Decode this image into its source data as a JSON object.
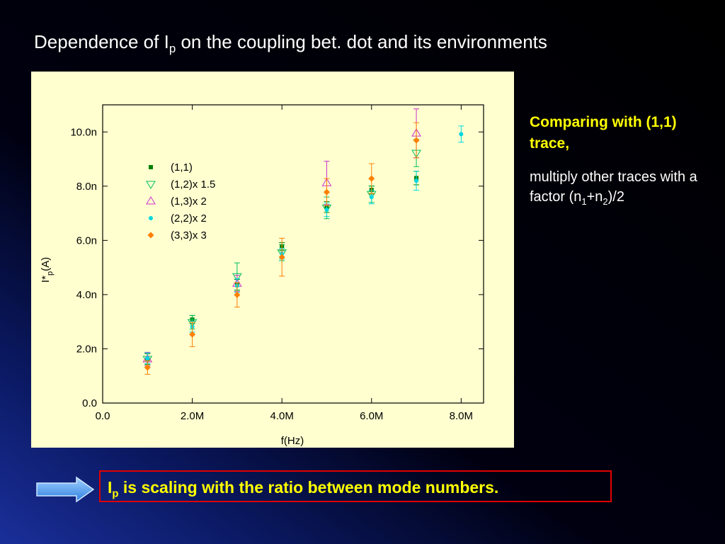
{
  "slide": {
    "title": [
      "Dependence of I",
      "p",
      " on the coupling bet. dot and its environments"
    ],
    "note_heading": "Comparing with (1,1) trace,",
    "note_body": [
      "multiply other traces with a factor (n",
      "1",
      "+n",
      "2",
      ")/2"
    ],
    "conclusion": [
      "I",
      "p",
      " is scaling with the ratio between mode numbers."
    ]
  },
  "chart_data": {
    "type": "scatter",
    "x_label": "f(Hz)",
    "y_label": [
      "I*",
      "p",
      "(A)"
    ],
    "x": [
      1000000,
      2000000,
      3000000,
      4000000,
      5000000,
      6000000,
      7000000,
      8000000
    ],
    "xlim": [
      0,
      8500000
    ],
    "ylim": [
      0,
      1.1e-08
    ],
    "xticks": [
      {
        "value": 0,
        "label": "0.0"
      },
      {
        "value": 2000000,
        "label": "2.0M"
      },
      {
        "value": 4000000,
        "label": "4.0M"
      },
      {
        "value": 6000000,
        "label": "6.0M"
      },
      {
        "value": 8000000,
        "label": "8.0M"
      }
    ],
    "yticks": [
      {
        "value": 0,
        "label": "0.0"
      },
      {
        "value": 2e-09,
        "label": "2.0n"
      },
      {
        "value": 4e-09,
        "label": "4.0n"
      },
      {
        "value": 6e-09,
        "label": "6.0n"
      },
      {
        "value": 8e-09,
        "label": "8.0n"
      },
      {
        "value": 1e-08,
        "label": "10.0n"
      }
    ],
    "series": [
      {
        "name": "(1,1)",
        "color": "#008000",
        "marker": "square",
        "values": [
          1.62e-09,
          3.08e-09,
          4.36e-09,
          5.77e-09,
          7.23e-09,
          7.86e-09,
          8.3e-09,
          null
        ],
        "errors": [
          2e-10,
          1.5e-10,
          2e-10,
          1.5e-10,
          2e-10,
          1.5e-10,
          2.5e-10,
          null
        ]
      },
      {
        "name": "(1,2)x 1.5",
        "color": "#00c060",
        "marker": "triangle-down",
        "values": [
          1.62e-09,
          2.98e-09,
          4.67e-09,
          5.55e-09,
          7.2e-09,
          7.7e-09,
          9.22e-09,
          null
        ],
        "errors": [
          2.5e-10,
          2.5e-10,
          5e-10,
          3e-10,
          4e-10,
          3e-10,
          5e-10,
          null
        ]
      },
      {
        "name": "(1,3)x 2",
        "color": "#cc33cc",
        "marker": "triangle-up",
        "values": [
          1.62e-09,
          null,
          4.41e-09,
          null,
          8.12e-09,
          null,
          9.95e-09,
          null
        ],
        "errors": [
          2.5e-10,
          null,
          3e-10,
          null,
          8e-10,
          null,
          9e-10,
          null
        ]
      },
      {
        "name": "(2,2)x 2",
        "color": "#00d8e0",
        "marker": "circle",
        "values": [
          1.65e-09,
          2.82e-09,
          4.33e-09,
          5.51e-09,
          7.13e-09,
          7.6e-09,
          8.2e-09,
          9.92e-09
        ],
        "errors": [
          2e-10,
          2e-10,
          2.5e-10,
          2e-10,
          2.5e-10,
          2.5e-10,
          3.5e-10,
          3e-10
        ]
      },
      {
        "name": "(3,3)x 3",
        "color": "#ff8000",
        "marker": "diamond",
        "values": [
          1.31e-09,
          2.53e-09,
          3.99e-09,
          5.38e-09,
          7.78e-09,
          8.28e-09,
          9.69e-09,
          null
        ],
        "errors": [
          2.5e-10,
          4.5e-10,
          4.5e-10,
          7e-10,
          5e-10,
          5.5e-10,
          6.5e-10,
          null
        ]
      }
    ]
  }
}
